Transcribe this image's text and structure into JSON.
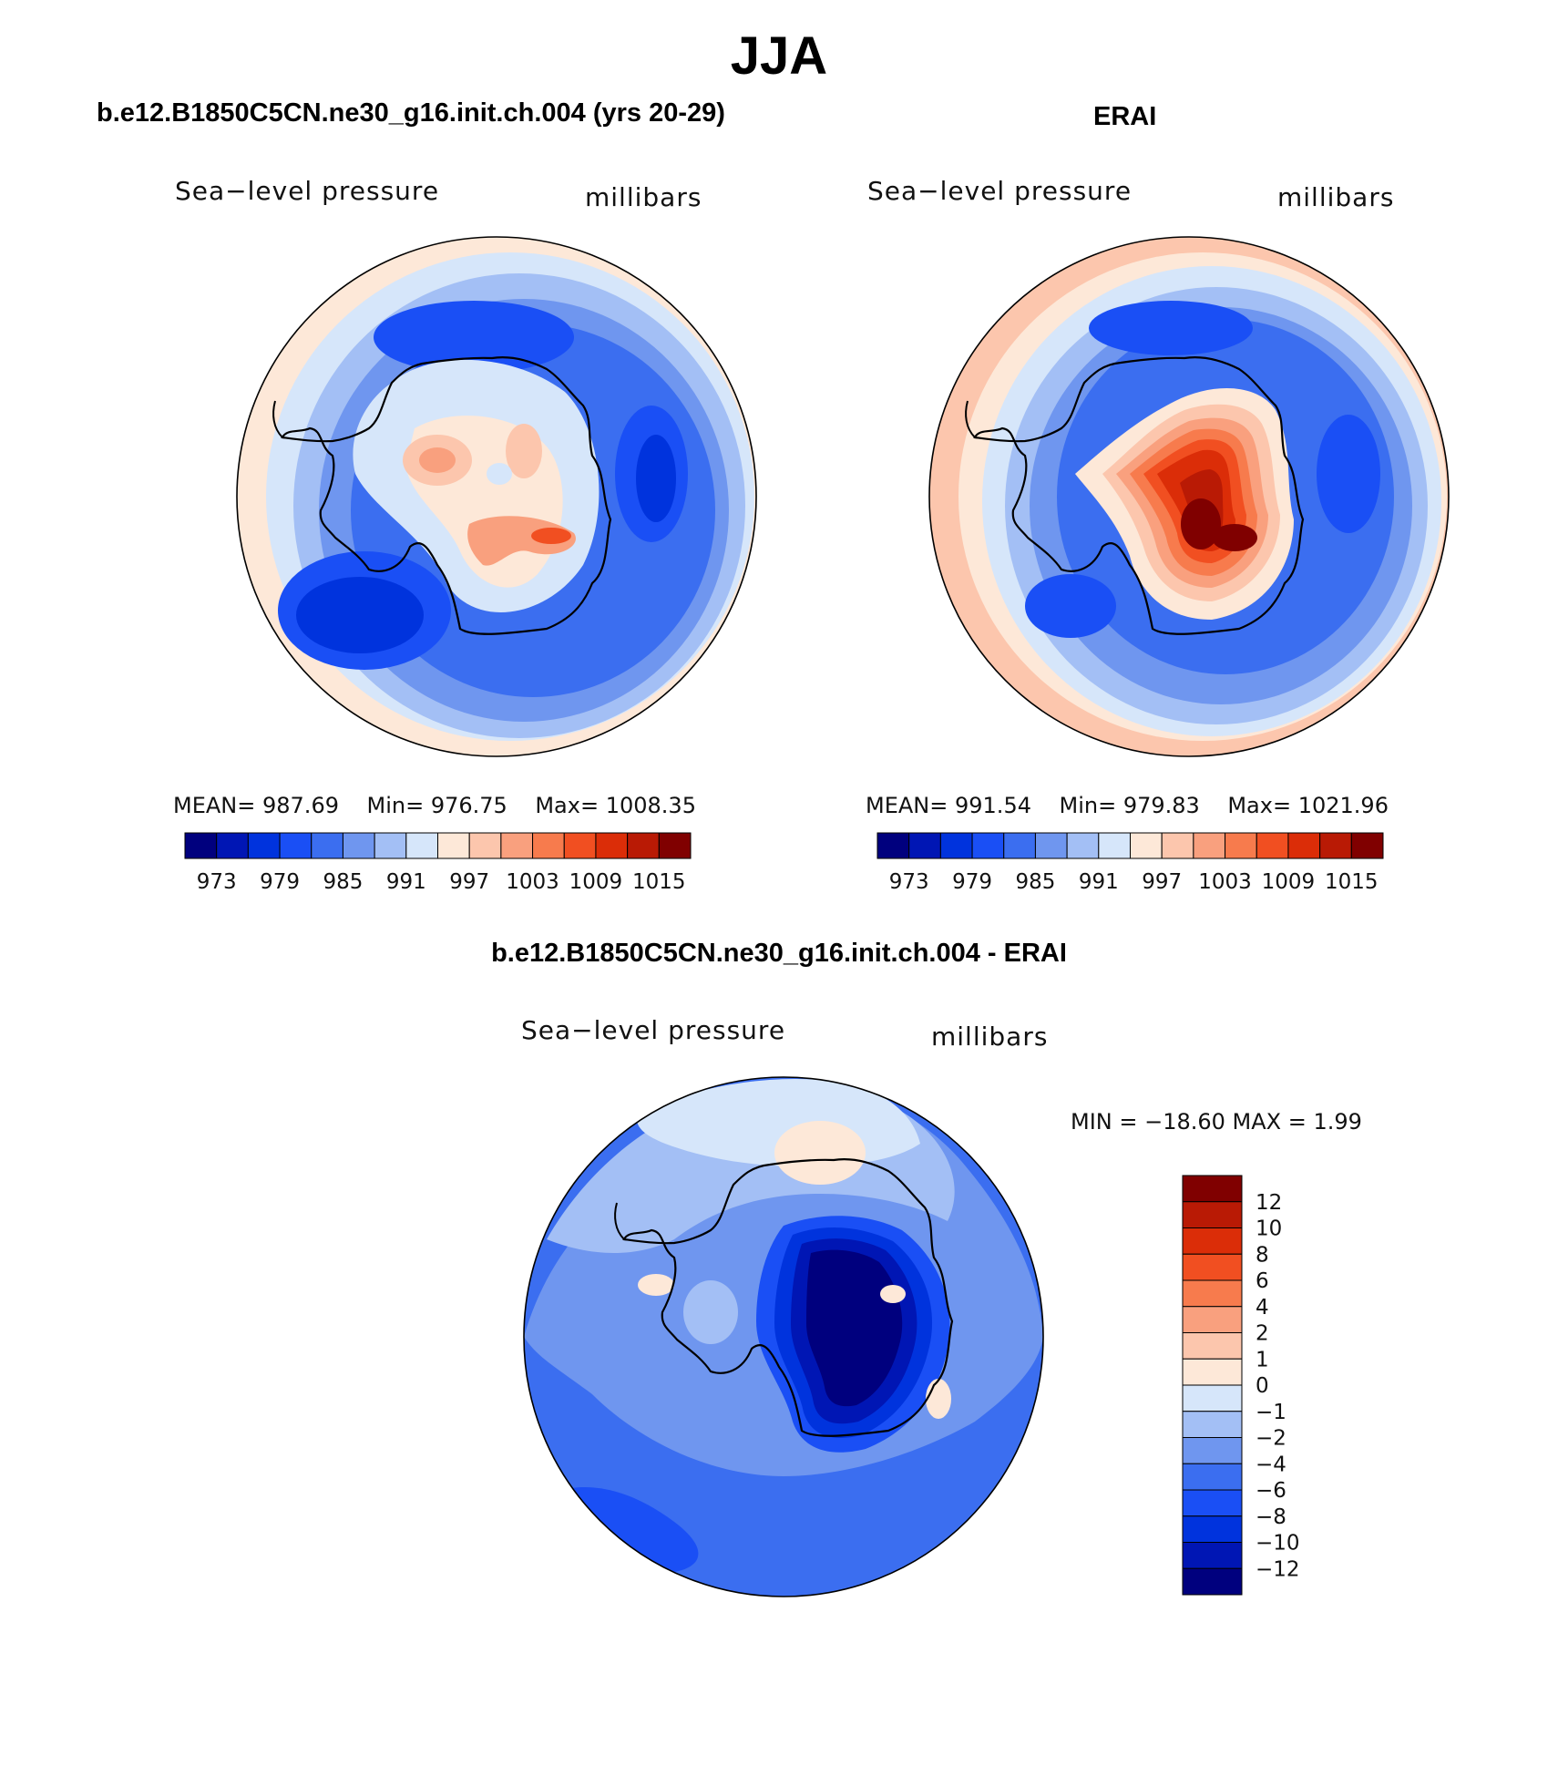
{
  "title": "JJA",
  "palette": {
    "levels": [
      "#00007e",
      "#0016b4",
      "#0033dd",
      "#1a4ff5",
      "#3b6ef0",
      "#6f96ef",
      "#a3bff5",
      "#d6e6fa",
      "#fde8d8",
      "#fcc6ad",
      "#f9a07e",
      "#f77b4d",
      "#f14f21",
      "#db2d08",
      "#b91a05",
      "#800000"
    ],
    "land_line": "#000000"
  },
  "panels": [
    {
      "id": "model",
      "title": "b.e12.B1850C5CN.ne30_g16.init.ch.004 (yrs 20-29)",
      "left_label": "Sea−level pressure",
      "right_label": "millibars",
      "mean_label": "MEAN=",
      "mean": "987.69",
      "min_label": "Min=",
      "min": "976.75",
      "max_label": "Max=",
      "max": "1008.35",
      "ticks": [
        "973",
        "979",
        "985",
        "991",
        "997",
        "1003",
        "1009",
        "1015"
      ]
    },
    {
      "id": "obs",
      "title": "ERAI",
      "left_label": "Sea−level pressure",
      "right_label": "millibars",
      "mean_label": "MEAN=",
      "mean": "991.54",
      "min_label": "Min=",
      "min": "979.83",
      "max_label": "Max=",
      "max": "1021.96",
      "ticks": [
        "973",
        "979",
        "985",
        "991",
        "997",
        "1003",
        "1009",
        "1015"
      ]
    },
    {
      "id": "diff",
      "title": "b.e12.B1850C5CN.ne30_g16.init.ch.004 - ERAI",
      "left_label": "Sea−level pressure",
      "right_label": "millibars",
      "minmax_text": "MIN = −18.60  MAX =     1.99",
      "ticks": [
        "12",
        "10",
        "8",
        "6",
        "4",
        "2",
        "1",
        "0",
        "−1",
        "−2",
        "−4",
        "−6",
        "−8",
        "−10",
        "−12"
      ]
    }
  ]
}
